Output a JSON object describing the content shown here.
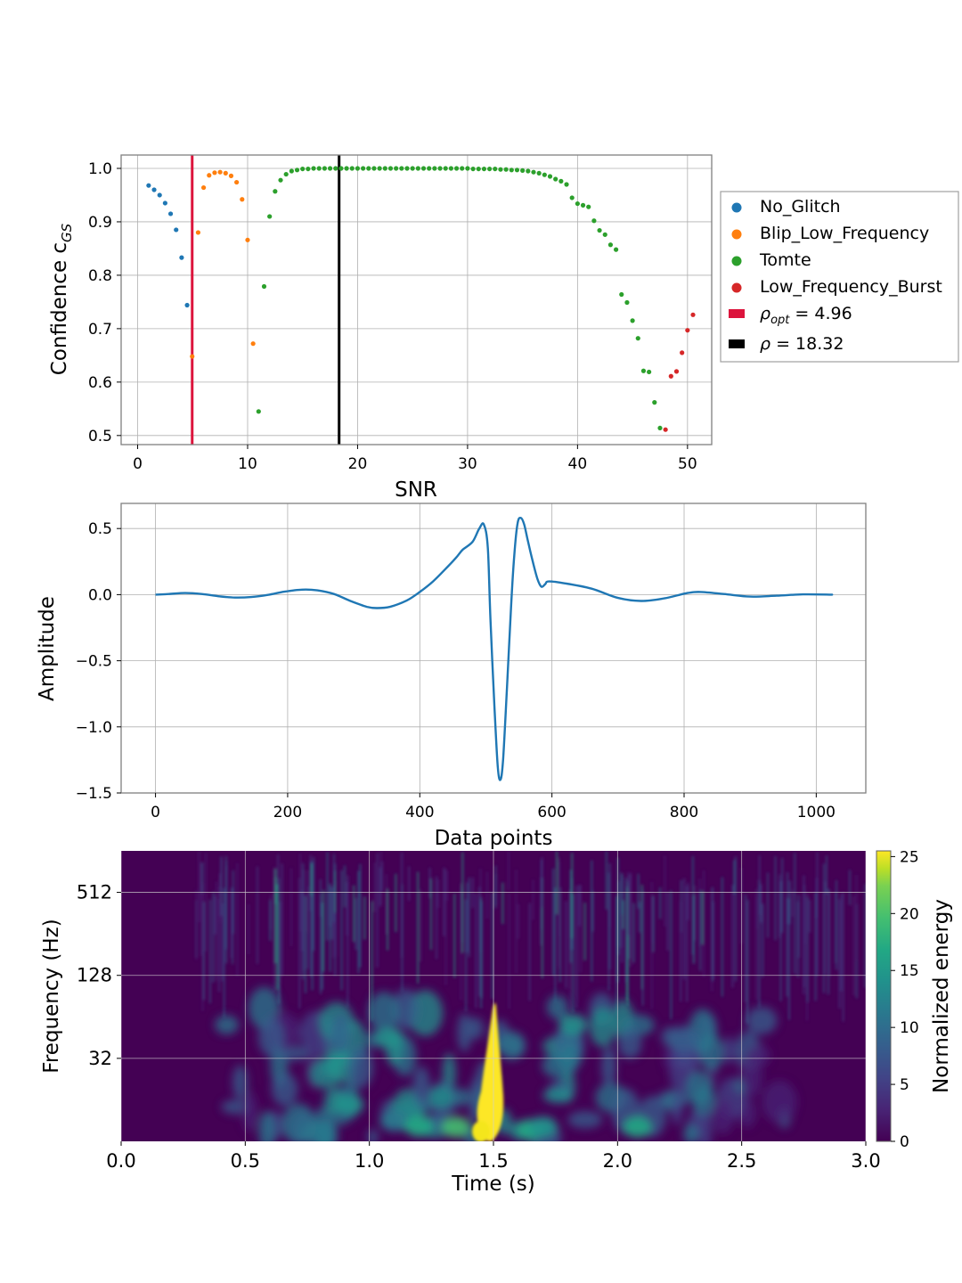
{
  "chart_data": [
    {
      "type": "scatter",
      "xlabel": "SNR",
      "ylabel_text": "Confidence c",
      "ylabel_sub": "GS",
      "xlim": [
        -1.5,
        52.2
      ],
      "ylim": [
        0.483,
        1.025
      ],
      "xticks": [
        0,
        10,
        20,
        30,
        40,
        50
      ],
      "xtick_labels": [
        "0",
        "10",
        "20",
        "30",
        "40",
        "50"
      ],
      "yticks": [
        0.5,
        0.6,
        0.7,
        0.8,
        0.9,
        1.0
      ],
      "ytick_labels": [
        "0.5",
        "0.6",
        "0.7",
        "0.8",
        "0.9",
        "1.0"
      ],
      "grid": true,
      "legend_position": "right, outside",
      "series": [
        {
          "name": "No_Glitch",
          "color": "#1f77b4",
          "points": [
            [
              1.0,
              0.968
            ],
            [
              1.5,
              0.96
            ],
            [
              2.0,
              0.95
            ],
            [
              2.5,
              0.935
            ],
            [
              3.0,
              0.915
            ],
            [
              3.5,
              0.885
            ],
            [
              4.0,
              0.833
            ],
            [
              4.5,
              0.744
            ]
          ]
        },
        {
          "name": "Blip_Low_Frequency",
          "color": "#ff7f0e",
          "points": [
            [
              4.96,
              0.648
            ],
            [
              5.5,
              0.88
            ],
            [
              6.0,
              0.964
            ],
            [
              6.5,
              0.987
            ],
            [
              7.0,
              0.992
            ],
            [
              7.5,
              0.993
            ],
            [
              8.0,
              0.991
            ],
            [
              8.5,
              0.986
            ],
            [
              9.0,
              0.974
            ],
            [
              9.5,
              0.942
            ],
            [
              10.0,
              0.866
            ],
            [
              10.5,
              0.672
            ]
          ]
        },
        {
          "name": "Tomte",
          "color": "#2ca02c",
          "points": [
            [
              11.0,
              0.545
            ],
            [
              11.5,
              0.779
            ],
            [
              12.0,
              0.91
            ],
            [
              12.5,
              0.957
            ],
            [
              13.0,
              0.978
            ],
            [
              13.5,
              0.989
            ],
            [
              14.0,
              0.995
            ],
            [
              14.5,
              0.997
            ],
            [
              15.0,
              0.999
            ],
            [
              15.5,
              0.999
            ],
            [
              16.0,
              1.0
            ],
            [
              16.5,
              1.0
            ],
            [
              17.0,
              1.0
            ],
            [
              17.5,
              1.0
            ],
            [
              18.0,
              1.0
            ],
            [
              18.5,
              1.0
            ],
            [
              19.0,
              1.0
            ],
            [
              19.5,
              1.0
            ],
            [
              20.0,
              1.0
            ],
            [
              20.5,
              1.0
            ],
            [
              21.0,
              1.0
            ],
            [
              21.5,
              1.0
            ],
            [
              22.0,
              1.0
            ],
            [
              22.5,
              1.0
            ],
            [
              23.0,
              1.0
            ],
            [
              23.5,
              1.0
            ],
            [
              24.0,
              1.0
            ],
            [
              24.5,
              1.0
            ],
            [
              25.0,
              1.0
            ],
            [
              25.5,
              1.0
            ],
            [
              26.0,
              1.0
            ],
            [
              26.5,
              1.0
            ],
            [
              27.0,
              1.0
            ],
            [
              27.5,
              1.0
            ],
            [
              28.0,
              1.0
            ],
            [
              28.5,
              1.0
            ],
            [
              29.0,
              1.0
            ],
            [
              29.5,
              1.0
            ],
            [
              30.0,
              1.0
            ],
            [
              30.5,
              0.999
            ],
            [
              31.0,
              0.999
            ],
            [
              31.5,
              0.999
            ],
            [
              32.0,
              0.999
            ],
            [
              32.5,
              0.999
            ],
            [
              33.0,
              0.998
            ],
            [
              33.5,
              0.998
            ],
            [
              34.0,
              0.997
            ],
            [
              34.5,
              0.997
            ],
            [
              35.0,
              0.996
            ],
            [
              35.5,
              0.995
            ],
            [
              36.0,
              0.993
            ],
            [
              36.5,
              0.991
            ],
            [
              37.0,
              0.988
            ],
            [
              37.5,
              0.985
            ],
            [
              38.0,
              0.98
            ],
            [
              38.5,
              0.976
            ],
            [
              39.0,
              0.97
            ],
            [
              39.5,
              0.945
            ],
            [
              40.0,
              0.934
            ],
            [
              40.5,
              0.931
            ],
            [
              41.0,
              0.928
            ],
            [
              41.5,
              0.902
            ],
            [
              42.0,
              0.884
            ],
            [
              42.5,
              0.876
            ],
            [
              43.0,
              0.857
            ],
            [
              43.5,
              0.848
            ],
            [
              44.0,
              0.764
            ],
            [
              44.5,
              0.749
            ],
            [
              45.0,
              0.715
            ],
            [
              45.5,
              0.682
            ],
            [
              46.0,
              0.621
            ],
            [
              46.5,
              0.619
            ],
            [
              47.0,
              0.562
            ],
            [
              47.5,
              0.514
            ]
          ]
        },
        {
          "name": "Low_Frequency_Burst",
          "color": "#d62728",
          "points": [
            [
              48.0,
              0.511
            ],
            [
              48.5,
              0.611
            ],
            [
              49.0,
              0.62
            ],
            [
              49.5,
              0.655
            ],
            [
              50.0,
              0.697
            ],
            [
              50.5,
              0.726
            ]
          ]
        }
      ],
      "vlines": [
        {
          "legend_label": "ρopt = 4.96",
          "label_sym": "ρ",
          "label_sub": "opt",
          "label_rest": " = 4.96",
          "x": 4.96,
          "color": "#dc143c"
        },
        {
          "legend_label": "ρ = 18.32",
          "label_sym": "ρ",
          "label_sub": "",
          "label_rest": " = 18.32",
          "x": 18.32,
          "color": "#000000"
        }
      ]
    },
    {
      "type": "line",
      "xlabel": "Data points",
      "ylabel": "Amplitude",
      "xlim": [
        -52,
        1075
      ],
      "ylim": [
        -1.5,
        0.69
      ],
      "xticks": [
        0,
        200,
        400,
        600,
        800,
        1000
      ],
      "xtick_labels": [
        "0",
        "200",
        "400",
        "600",
        "800",
        "1000"
      ],
      "yticks": [
        -1.5,
        -1.0,
        -0.5,
        0.0,
        0.5
      ],
      "ytick_labels": [
        "−1.5",
        "−1.0",
        "−0.5",
        "0.0",
        "0.5"
      ],
      "grid": true,
      "series": [
        {
          "color": "#1f77b4",
          "points": [
            [
              0,
              0.0
            ],
            [
              20,
              0.005
            ],
            [
              45,
              0.012
            ],
            [
              70,
              0.005
            ],
            [
              95,
              -0.012
            ],
            [
              120,
              -0.022
            ],
            [
              145,
              -0.018
            ],
            [
              170,
              -0.002
            ],
            [
              195,
              0.022
            ],
            [
              222,
              0.038
            ],
            [
              245,
              0.032
            ],
            [
              270,
              0.005
            ],
            [
              295,
              -0.048
            ],
            [
              320,
              -0.092
            ],
            [
              335,
              -0.102
            ],
            [
              355,
              -0.092
            ],
            [
              380,
              -0.045
            ],
            [
              400,
              0.02
            ],
            [
              420,
              0.1
            ],
            [
              440,
              0.2
            ],
            [
              455,
              0.28
            ],
            [
              465,
              0.34
            ],
            [
              480,
              0.4
            ],
            [
              490,
              0.5
            ],
            [
              497,
              0.53
            ],
            [
              503,
              0.35
            ],
            [
              507,
              -0.2
            ],
            [
              513,
              -0.85
            ],
            [
              518,
              -1.3
            ],
            [
              522,
              -1.4
            ],
            [
              526,
              -1.25
            ],
            [
              532,
              -0.7
            ],
            [
              538,
              -0.1
            ],
            [
              543,
              0.3
            ],
            [
              548,
              0.54
            ],
            [
              553,
              0.58
            ],
            [
              558,
              0.53
            ],
            [
              563,
              0.42
            ],
            [
              570,
              0.27
            ],
            [
              578,
              0.12
            ],
            [
              584,
              0.06
            ],
            [
              590,
              0.08
            ],
            [
              595,
              0.1
            ],
            [
              620,
              0.085
            ],
            [
              660,
              0.045
            ],
            [
              700,
              -0.025
            ],
            [
              735,
              -0.048
            ],
            [
              770,
              -0.028
            ],
            [
              805,
              0.012
            ],
            [
              825,
              0.02
            ],
            [
              860,
              0.005
            ],
            [
              900,
              -0.015
            ],
            [
              940,
              -0.008
            ],
            [
              980,
              0.002
            ],
            [
              1020,
              0.0
            ],
            [
              1023,
              0.0
            ]
          ]
        }
      ]
    },
    {
      "type": "heatmap",
      "xlabel": "Time (s)",
      "ylabel": "Frequency (Hz)",
      "xlim": [
        0.0,
        3.0
      ],
      "xticks": [
        0.0,
        0.5,
        1.0,
        1.5,
        2.0,
        2.5,
        3.0
      ],
      "xtick_labels": [
        "0.0",
        "0.5",
        "1.0",
        "1.5",
        "2.0",
        "2.5",
        "3.0"
      ],
      "yscale": "log2",
      "ylim": [
        8,
        1024
      ],
      "yticks": [
        32,
        128,
        512
      ],
      "ytick_labels": [
        "32",
        "128",
        "512"
      ],
      "grid": true,
      "colormap": "viridis",
      "colorbar": {
        "label": "Normalized energy",
        "ticks": [
          0,
          5,
          10,
          15,
          20,
          25
        ],
        "tick_labels": [
          "0",
          "5",
          "10",
          "15",
          "20",
          "25"
        ],
        "range": [
          0,
          25.5
        ]
      },
      "peak": {
        "time_s": 1.5,
        "freq_hz_range": [
          8,
          100
        ],
        "energy": 25.5
      }
    }
  ]
}
